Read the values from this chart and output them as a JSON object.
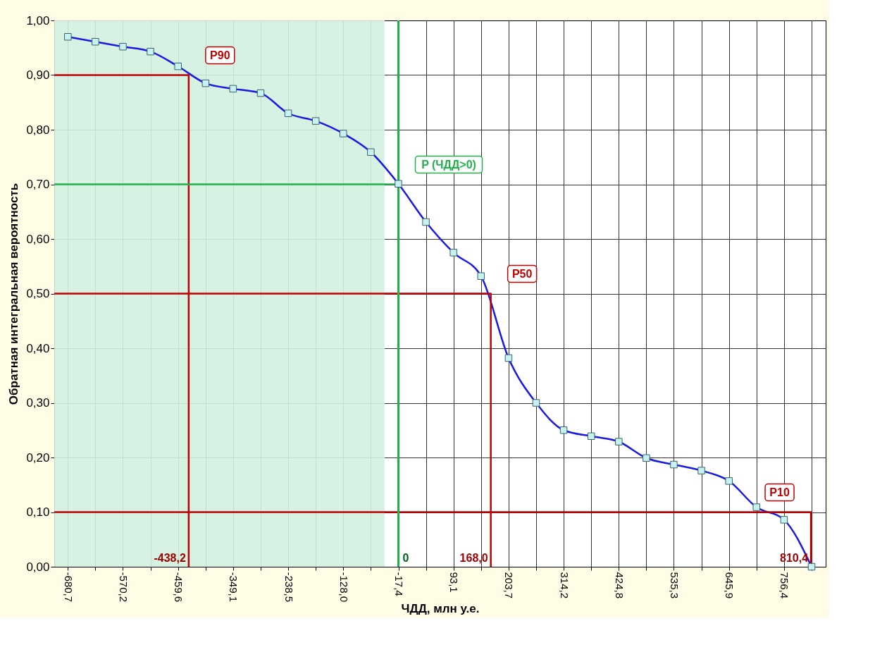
{
  "chart_data": {
    "type": "line",
    "xlabel": "ЧДД, млн у.е.",
    "ylabel": "Обратная интегральная вероятность",
    "xlim": [
      -708,
      840
    ],
    "ylim": [
      0,
      1
    ],
    "xticks": [
      {
        "value": -680.7,
        "label": "-680,7"
      },
      {
        "value": -625.45,
        "label": null
      },
      {
        "value": -570.2,
        "label": "-570,2"
      },
      {
        "value": -514.9,
        "label": null
      },
      {
        "value": -459.6,
        "label": "-459,6"
      },
      {
        "value": -404.35,
        "label": null
      },
      {
        "value": -349.1,
        "label": "-349,1"
      },
      {
        "value": -293.8,
        "label": null
      },
      {
        "value": -238.5,
        "label": "-238,5"
      },
      {
        "value": -183.25,
        "label": null
      },
      {
        "value": -128.0,
        "label": "-128,0"
      },
      {
        "value": -72.7,
        "label": null
      },
      {
        "value": -17.4,
        "label": "-17,4"
      },
      {
        "value": 37.85,
        "label": null
      },
      {
        "value": 93.1,
        "label": "93,1"
      },
      {
        "value": 148.4,
        "label": null
      },
      {
        "value": 203.7,
        "label": "203,7"
      },
      {
        "value": 258.95,
        "label": null
      },
      {
        "value": 314.2,
        "label": "314,2"
      },
      {
        "value": 369.5,
        "label": null
      },
      {
        "value": 424.8,
        "label": "424,8"
      },
      {
        "value": 480.05,
        "label": null
      },
      {
        "value": 535.3,
        "label": "535,3"
      },
      {
        "value": 590.6,
        "label": null
      },
      {
        "value": 645.9,
        "label": "645,9"
      },
      {
        "value": 701.15,
        "label": null
      },
      {
        "value": 756.4,
        "label": "756,4"
      },
      {
        "value": 811.7,
        "label": null
      }
    ],
    "yticks": [
      {
        "value": 0,
        "label": "0,00"
      },
      {
        "value": 0.1,
        "label": "0,10"
      },
      {
        "value": 0.2,
        "label": "0,20"
      },
      {
        "value": 0.3,
        "label": "0,30"
      },
      {
        "value": 0.4,
        "label": "0,40"
      },
      {
        "value": 0.5,
        "label": "0,50"
      },
      {
        "value": 0.6,
        "label": "0,60"
      },
      {
        "value": 0.7,
        "label": "0,70"
      },
      {
        "value": 0.8,
        "label": "0,80"
      },
      {
        "value": 0.9,
        "label": "0,90"
      },
      {
        "value": 1,
        "label": "1,00"
      }
    ],
    "grid": true,
    "marker": "square",
    "series": [
      {
        "color": "#1a1ae6",
        "x": [
          -680.7,
          -625.45,
          -570.2,
          -514.9,
          -459.6,
          -404.35,
          -349.1,
          -293.8,
          -238.5,
          -183.25,
          -128.0,
          -72.7,
          -17.4,
          37.85,
          93.1,
          148.4,
          203.7,
          258.95,
          314.2,
          369.5,
          424.8,
          480.05,
          535.3,
          590.6,
          645.9,
          701.15,
          756.4,
          811.7
        ],
        "values": [
          0.97,
          0.961,
          0.952,
          0.943,
          0.916,
          0.885,
          0.875,
          0.867,
          0.83,
          0.816,
          0.793,
          0.759,
          0.701,
          0.631,
          0.575,
          0.532,
          0.382,
          0.3,
          0.25,
          0.239,
          0.229,
          0.199,
          0.187,
          0.176,
          0.157,
          0.109,
          0.086,
          0.0
        ]
      },
      {
        "color": "#c00000",
        "marker": "none",
        "x": [
          -708,
          -438.2,
          -438.2
        ],
        "values": [
          0.9,
          0.9,
          0
        ]
      },
      {
        "color": "#c00000",
        "marker": "none",
        "x": [
          -708,
          168.0,
          168.0
        ],
        "values": [
          0.5,
          0.5,
          0
        ]
      },
      {
        "color": "#c00000",
        "marker": "none",
        "x": [
          -708,
          810.4,
          810.4
        ],
        "values": [
          0.1,
          0.1,
          0
        ]
      },
      {
        "color": "#22b04a",
        "marker": "none",
        "x": [
          -17.4,
          -708
        ],
        "values": [
          0.7,
          0.7
        ]
      }
    ],
    "bands": [
      {
        "axis": "x",
        "from": -708,
        "to": -45,
        "color": "#d3efe0"
      }
    ],
    "ref_lines": [
      {
        "axis": "x",
        "value": -17.4,
        "color": "#22b04a"
      }
    ],
    "annotations": [
      {
        "text": "P90",
        "x": -438.2,
        "y": 0.9
      },
      {
        "text": "P50",
        "x": 168.0,
        "y": 0.5
      },
      {
        "text": "P10",
        "x": 810.4,
        "y": 0.1
      },
      {
        "text": "P (ЧДД>0)",
        "x": -17.4,
        "y": 0.7
      },
      {
        "text": "-438,2",
        "x": -438.2,
        "y": 0
      },
      {
        "text": "168,0",
        "x": 168.0,
        "y": 0
      },
      {
        "text": "810,4",
        "x": 810.4,
        "y": 0
      },
      {
        "text": "0",
        "x": -17.4,
        "y": 0
      }
    ]
  }
}
